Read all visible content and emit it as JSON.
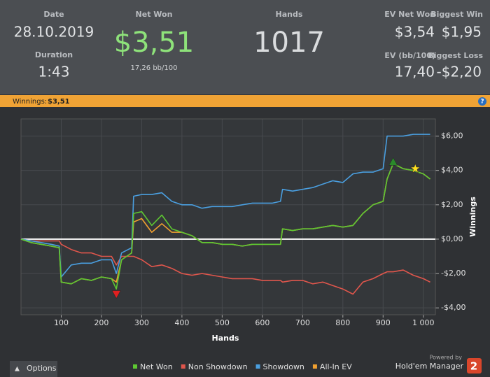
{
  "header": {
    "date_label": "Date",
    "date": "28.10.2019",
    "duration_label": "Duration",
    "duration": "1:43",
    "net_won_label": "Net Won",
    "net_won": "$3,51",
    "net_won_bb": "17,26 bb/100",
    "hands_label": "Hands",
    "hands": "1017",
    "ev_net_won_label": "EV Net Won",
    "ev_net_won": "$3,54",
    "biggest_win_label": "Biggest Win",
    "biggest_win": "$1,95",
    "ev_bb_label": "EV (bb/100)",
    "ev_bb": "17,40",
    "biggest_loss_label": "Biggest Loss",
    "biggest_loss": "-$2,20"
  },
  "banner": {
    "label": "Winnings:",
    "value": "$3,51",
    "help": "?"
  },
  "chart_data": {
    "type": "line",
    "x_label": "Hands",
    "y_label": "Winnings",
    "x": [
      0,
      25,
      50,
      75,
      95,
      100,
      125,
      150,
      175,
      200,
      225,
      237,
      250,
      275,
      280,
      300,
      325,
      350,
      375,
      400,
      425,
      450,
      475,
      500,
      525,
      550,
      575,
      600,
      625,
      645,
      650,
      675,
      700,
      725,
      750,
      775,
      800,
      825,
      850,
      875,
      900,
      910,
      925,
      950,
      975,
      1000,
      1017
    ],
    "series": [
      {
        "name": "All-In EV",
        "color": "#f0a030",
        "values": [
          0,
          -0.2,
          -0.3,
          -0.4,
          -0.5,
          -2.5,
          -2.6,
          -2.3,
          -2.4,
          -2.2,
          -2.3,
          -2.5,
          -1.2,
          -0.8,
          1.0,
          1.2,
          0.4,
          0.9,
          0.4,
          0.4,
          0.2,
          -0.2,
          -0.2,
          -0.3,
          -0.3,
          -0.4,
          -0.3,
          -0.3,
          -0.3,
          -0.3,
          0.6,
          0.5,
          0.6,
          0.6,
          0.7,
          0.8,
          0.7,
          0.8,
          1.5,
          2.0,
          2.2,
          3.5,
          4.4,
          4.1,
          4.0,
          3.8,
          3.5
        ]
      },
      {
        "name": "Non Showdown",
        "color": "#e0564c",
        "values": [
          0,
          -0.1,
          -0.1,
          -0.1,
          -0.1,
          -0.3,
          -0.6,
          -0.8,
          -0.8,
          -1.0,
          -1.0,
          -1.5,
          -1.0,
          -1.0,
          -1.0,
          -1.2,
          -1.6,
          -1.5,
          -1.7,
          -2.0,
          -2.1,
          -2.0,
          -2.1,
          -2.2,
          -2.3,
          -2.3,
          -2.3,
          -2.4,
          -2.4,
          -2.4,
          -2.5,
          -2.4,
          -2.4,
          -2.6,
          -2.5,
          -2.7,
          -2.9,
          -3.2,
          -2.5,
          -2.3,
          -2.0,
          -1.9,
          -1.9,
          -1.8,
          -2.1,
          -2.3,
          -2.5
        ]
      },
      {
        "name": "Showdown",
        "color": "#4a9fe0",
        "values": [
          0,
          -0.1,
          -0.2,
          -0.3,
          -0.4,
          -2.2,
          -1.5,
          -1.4,
          -1.4,
          -1.2,
          -1.2,
          -2.0,
          -0.8,
          -0.5,
          2.5,
          2.6,
          2.6,
          2.7,
          2.2,
          2.0,
          2.0,
          1.8,
          1.9,
          1.9,
          1.9,
          2.0,
          2.1,
          2.1,
          2.1,
          2.2,
          2.9,
          2.8,
          2.9,
          3.0,
          3.2,
          3.4,
          3.3,
          3.8,
          3.9,
          3.9,
          4.1,
          6.0,
          6.0,
          6.0,
          6.1,
          6.1,
          6.1
        ]
      },
      {
        "name": "Net Won",
        "color": "#5ec832",
        "values": [
          0,
          -0.2,
          -0.3,
          -0.4,
          -0.5,
          -2.5,
          -2.6,
          -2.3,
          -2.4,
          -2.2,
          -2.3,
          -2.9,
          -1.2,
          -0.8,
          1.5,
          1.6,
          0.8,
          1.4,
          0.6,
          0.4,
          0.2,
          -0.2,
          -0.2,
          -0.3,
          -0.3,
          -0.4,
          -0.3,
          -0.3,
          -0.3,
          -0.3,
          0.6,
          0.5,
          0.6,
          0.6,
          0.7,
          0.8,
          0.7,
          0.8,
          1.5,
          2.0,
          2.2,
          3.5,
          4.4,
          4.1,
          4.0,
          3.8,
          3.5
        ]
      }
    ],
    "legend_order": [
      3,
      1,
      2,
      0
    ],
    "markers": [
      {
        "x": 237,
        "y": -3.2,
        "color": "#e02020",
        "shape": "triangle-down"
      },
      {
        "x": 925,
        "y": 4.5,
        "color": "#2a8a2a",
        "shape": "triangle-up"
      },
      {
        "x": 980,
        "y": 4.1,
        "color": "#ffe020",
        "shape": "star"
      }
    ],
    "xlim": [
      0,
      1030
    ],
    "xticks": [
      100,
      200,
      300,
      400,
      500,
      600,
      700,
      800,
      900,
      {
        "value": 1000,
        "label": "1 000"
      }
    ],
    "ylim": [
      -4.4,
      7
    ],
    "yticks": [
      {
        "value": -4,
        "label": "-$4,00"
      },
      {
        "value": -2,
        "label": "-$2,00"
      },
      {
        "value": 0,
        "label": "$0,00"
      },
      {
        "value": 2,
        "label": "$2,00"
      },
      {
        "value": 4,
        "label": "$4,00"
      },
      {
        "value": 6,
        "label": "$6,00"
      }
    ],
    "grid": true,
    "zero_line": true
  },
  "footer": {
    "options": "Options",
    "powered_by": "Powered by",
    "brand": "Hold'em Manager",
    "logo": "2"
  }
}
